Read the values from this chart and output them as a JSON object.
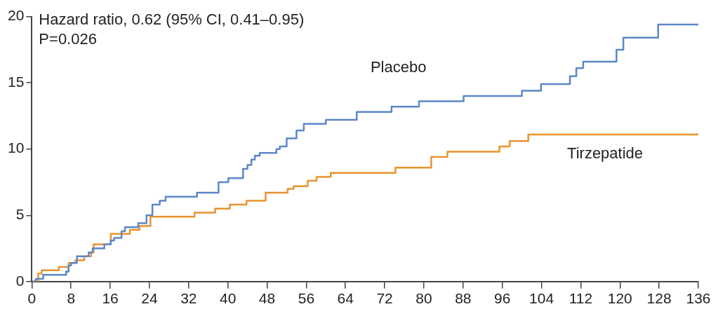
{
  "chart_data": {
    "type": "step",
    "annotations": [
      "Hazard ratio, 0.62 (95% CI, 0.41–0.95)",
      "P=0.026"
    ],
    "xlim": [
      0,
      136
    ],
    "xticks": [
      0,
      8,
      16,
      24,
      32,
      40,
      48,
      56,
      64,
      72,
      80,
      88,
      96,
      104,
      112,
      120,
      128,
      136
    ],
    "ylim": [
      0,
      20
    ],
    "yticks": [
      0,
      5,
      10,
      15,
      20
    ],
    "grid": false,
    "legend": false,
    "series": [
      {
        "name": "Placebo",
        "color": "#5b87c8",
        "x": [
          0,
          0.8,
          2.3,
          7,
          7.5,
          8,
          9.2,
          11.6,
          12.4,
          14.8,
          16.1,
          16.8,
          18.3,
          19,
          21.7,
          23.4,
          24.6,
          26.1,
          27.3,
          33.7,
          38.1,
          40.1,
          43.1,
          44,
          44.8,
          45.5,
          46.5,
          49.9,
          50.6,
          52,
          54,
          55.5,
          60,
          66.3,
          73.4,
          79,
          88.1,
          100,
          103.9,
          109.8,
          111.1,
          112.5,
          119.3,
          120.7,
          127.8,
          136
        ],
        "values": [
          0,
          0.2,
          0.5,
          0.75,
          1.2,
          1.4,
          1.9,
          2.2,
          2.5,
          2.8,
          3.1,
          3.3,
          3.8,
          4.1,
          4.4,
          5,
          5.8,
          6.1,
          6.4,
          6.7,
          7.5,
          7.8,
          8.5,
          8.8,
          9.2,
          9.5,
          9.7,
          10,
          10.2,
          10.8,
          11.4,
          11.9,
          12.2,
          12.8,
          13.2,
          13.6,
          14,
          14.4,
          14.9,
          15.5,
          16.1,
          16.6,
          17.5,
          18.4,
          19.4,
          19.4
        ]
      },
      {
        "name": "Tirzepatide",
        "color": "#e8932e",
        "x": [
          0,
          1.3,
          2,
          5.5,
          7.5,
          8.9,
          10.7,
          12.1,
          12.6,
          16.1,
          20,
          22,
          24.2,
          33.2,
          37.4,
          40.4,
          43.8,
          47.7,
          52.2,
          53.4,
          56.3,
          58.1,
          61,
          74.2,
          81.5,
          84.8,
          95.4,
          97.5,
          101.3,
          136
        ],
        "values": [
          0,
          0.6,
          0.85,
          1.1,
          1.4,
          1.6,
          1.9,
          2.2,
          2.8,
          3.6,
          3.9,
          4.2,
          4.9,
          5.2,
          5.5,
          5.8,
          6.1,
          6.7,
          7,
          7.2,
          7.6,
          7.9,
          8.2,
          8.6,
          9.4,
          9.8,
          10.2,
          10.6,
          11.1,
          11.1
        ]
      }
    ]
  }
}
